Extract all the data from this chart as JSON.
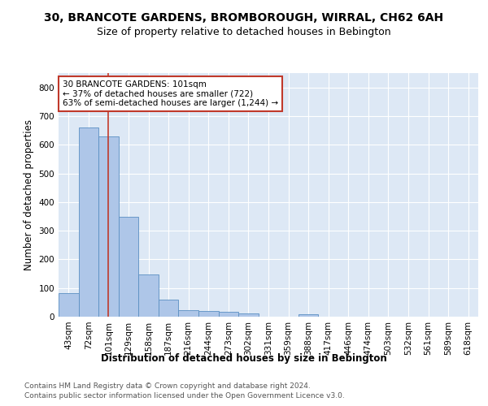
{
  "title": "30, BRANCOTE GARDENS, BROMBOROUGH, WIRRAL, CH62 6AH",
  "subtitle": "Size of property relative to detached houses in Bebington",
  "xlabel": "Distribution of detached houses by size in Bebington",
  "ylabel": "Number of detached properties",
  "bin_labels": [
    "43sqm",
    "72sqm",
    "101sqm",
    "129sqm",
    "158sqm",
    "187sqm",
    "216sqm",
    "244sqm",
    "273sqm",
    "302sqm",
    "331sqm",
    "359sqm",
    "388sqm",
    "417sqm",
    "446sqm",
    "474sqm",
    "503sqm",
    "532sqm",
    "561sqm",
    "589sqm",
    "618sqm"
  ],
  "bar_values": [
    83,
    660,
    630,
    348,
    148,
    60,
    24,
    21,
    16,
    11,
    0,
    0,
    8,
    0,
    0,
    0,
    0,
    0,
    0,
    0,
    0
  ],
  "bar_color": "#aec6e8",
  "bar_edge_color": "#5a8fc2",
  "highlight_index": 2,
  "highlight_color": "#c0392b",
  "annotation_line1": "30 BRANCOTE GARDENS: 101sqm",
  "annotation_line2": "← 37% of detached houses are smaller (722)",
  "annotation_line3": "63% of semi-detached houses are larger (1,244) →",
  "annotation_box_color": "#ffffff",
  "annotation_box_edge_color": "#c0392b",
  "ylim": [
    0,
    850
  ],
  "yticks": [
    0,
    100,
    200,
    300,
    400,
    500,
    600,
    700,
    800
  ],
  "background_color": "#dde8f5",
  "grid_color": "#ffffff",
  "footer_line1": "Contains HM Land Registry data © Crown copyright and database right 2024.",
  "footer_line2": "Contains public sector information licensed under the Open Government Licence v3.0.",
  "title_fontsize": 10,
  "subtitle_fontsize": 9,
  "axis_label_fontsize": 8.5,
  "tick_fontsize": 7.5,
  "annotation_fontsize": 7.5,
  "footer_fontsize": 6.5
}
